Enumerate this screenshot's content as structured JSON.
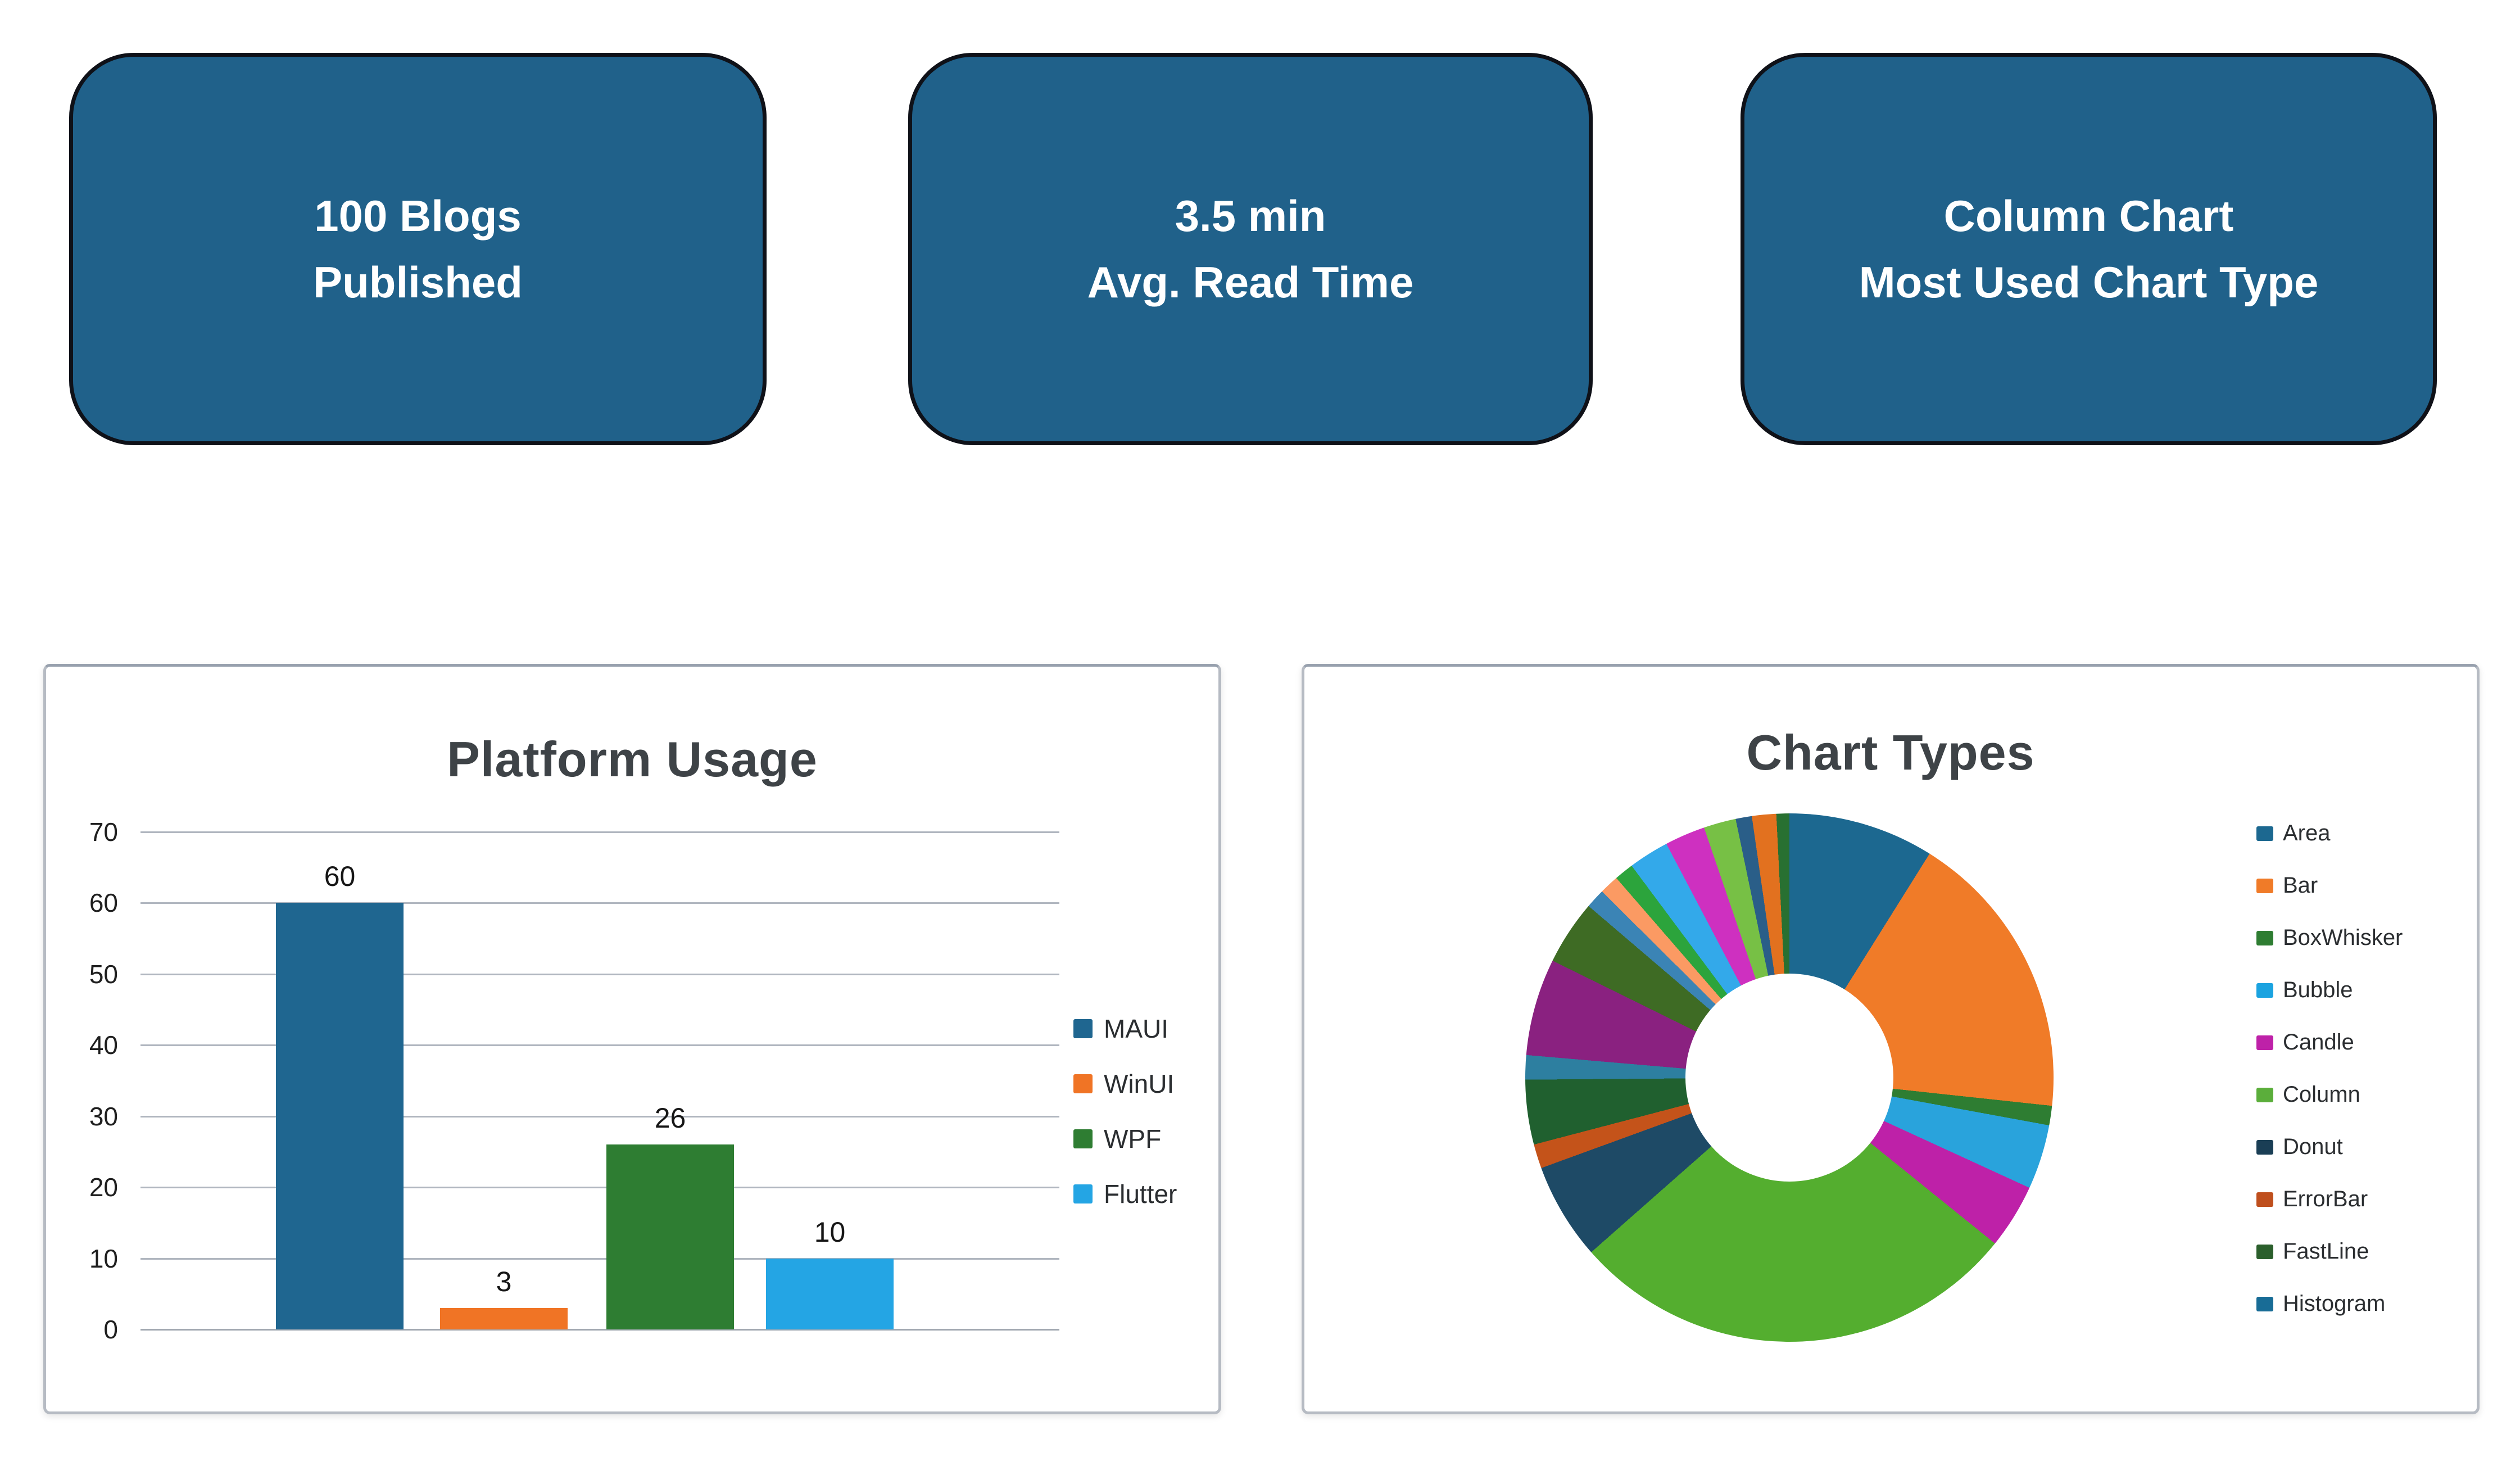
{
  "cards": [
    {
      "line1": "100 Blogs",
      "line2": "Published"
    },
    {
      "line1": "3.5 min",
      "line2": "Avg. Read Time"
    },
    {
      "line1": "Column Chart",
      "line2": "Most Used Chart Type"
    }
  ],
  "card_style": {
    "background": "#20618A",
    "border": "#0f1118",
    "text": "#ffffff"
  },
  "chart_data": [
    {
      "type": "bar",
      "title": "Platform Usage",
      "categories": [
        "MAUI",
        "WinUI",
        "WPF",
        "Flutter"
      ],
      "values": [
        60,
        3,
        26,
        10
      ],
      "value_labels": [
        "60",
        "3",
        "26",
        "10"
      ],
      "colors": [
        "#1F6690",
        "#F07425",
        "#2E7D32",
        "#24A5E4"
      ],
      "ylim": [
        0,
        70
      ],
      "yticks": [
        0,
        10,
        20,
        30,
        40,
        50,
        60,
        70
      ],
      "grid": true,
      "grid_color": "#b0b6bf",
      "axis_text_color": "#1f1f1f",
      "title_color": "#3e4347",
      "legend_position": "right",
      "legend": [
        {
          "label": "MAUI",
          "color": "#1F6690"
        },
        {
          "label": "WinUI",
          "color": "#F07425"
        },
        {
          "label": "WPF",
          "color": "#2E7D32"
        },
        {
          "label": "Flutter",
          "color": "#24A5E4"
        }
      ]
    },
    {
      "type": "donut",
      "title": "Chart Types",
      "legend_position": "right",
      "title_color": "#3e4347",
      "legend": [
        {
          "label": "Area",
          "color": "#1C6890"
        },
        {
          "label": "Bar",
          "color": "#F07B28"
        },
        {
          "label": "BoxWhisker",
          "color": "#2E7D32"
        },
        {
          "label": "Bubble",
          "color": "#1BA3E0"
        },
        {
          "label": "Candle",
          "color": "#BE21A8"
        },
        {
          "label": "Column",
          "color": "#5BAE3B"
        },
        {
          "label": "Donut",
          "color": "#1A3E55"
        },
        {
          "label": "ErrorBar",
          "color": "#BF4F1D"
        },
        {
          "label": "FastLine",
          "color": "#2B5F2C"
        },
        {
          "label": "Histogram",
          "color": "#186C96"
        }
      ],
      "slices": [
        {
          "label": "Area",
          "color": "#1C6890",
          "value": 9
        },
        {
          "label": "Bar",
          "color": "#F07B28",
          "value": 18
        },
        {
          "label": "BoxWhisker",
          "color": "#2E7D32",
          "value": 1.2
        },
        {
          "label": "Bubble",
          "color": "#29A3DC",
          "value": 4
        },
        {
          "label": "Candle",
          "color": "#BE21A8",
          "value": 4
        },
        {
          "label": "Column",
          "color": "#54AE2F",
          "value": 28
        },
        {
          "label": "Donut",
          "color": "#1E4A66",
          "value": 6
        },
        {
          "label": "ErrorBar",
          "color": "#C4531A",
          "value": 1.5
        },
        {
          "label": "FastLine",
          "color": "#20602F",
          "value": 4
        },
        {
          "label": "Histogram",
          "color": "#2D7FA0",
          "value": 1.5
        },
        {
          "label": "",
          "color": "#8A2180",
          "value": 6
        },
        {
          "label": "",
          "color": "#3E6B24",
          "value": 4
        },
        {
          "label": "",
          "color": "#3B84B5",
          "value": 1.2
        },
        {
          "label": "",
          "color": "#FB9A63",
          "value": 1.2
        },
        {
          "label": "",
          "color": "#2CA43C",
          "value": 1.2
        },
        {
          "label": "",
          "color": "#33A9EA",
          "value": 2.5
        },
        {
          "label": "",
          "color": "#CE30C0",
          "value": 2.5
        },
        {
          "label": "",
          "color": "#77C045",
          "value": 2
        },
        {
          "label": "",
          "color": "#2A5E88",
          "value": 1
        },
        {
          "label": "",
          "color": "#E2711F",
          "value": 1.5
        },
        {
          "label": "",
          "color": "#287031",
          "value": 0.8
        }
      ]
    }
  ]
}
